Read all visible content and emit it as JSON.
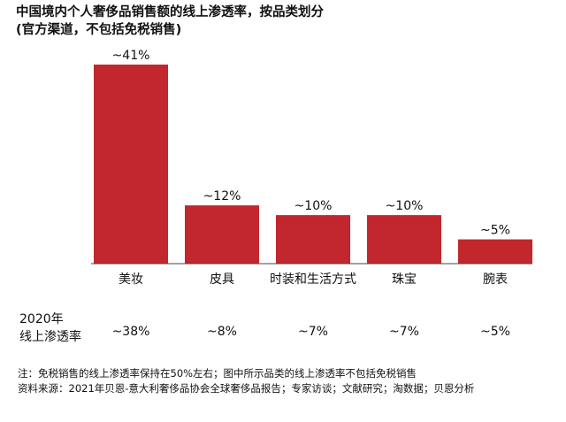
{
  "title_line1": "中国境内个人奢侈品销售额的线上渗透率，按品类划分",
  "title_line2": "(官方渠道，不包括免税销售)",
  "chart_data": {
    "type": "bar",
    "categories": [
      "美妆",
      "皮具",
      "时装和生活方式",
      "珠宝",
      "腕表"
    ],
    "values": [
      41,
      12,
      10,
      10,
      5
    ],
    "data_labels": [
      "~41%",
      "~12%",
      "~10%",
      "~10%",
      "~5%"
    ],
    "ylim": [
      0,
      41
    ],
    "bar_color": "#c1272d",
    "grid": false
  },
  "row_2020": {
    "label_line1": "2020年",
    "label_line2": "线上渗透率",
    "values": [
      "~38%",
      "~8%",
      "~7%",
      "~7%",
      "~5%"
    ]
  },
  "footnotes": {
    "note": "注：免税销售的线上渗透率保持在50%左右；图中所示品类的线上渗透率不包括免税销售",
    "source": "资料来源：2021年贝恩-意大利奢侈品协会全球奢侈品报告；专家访谈；文献研究；淘数据；贝恩分析"
  }
}
